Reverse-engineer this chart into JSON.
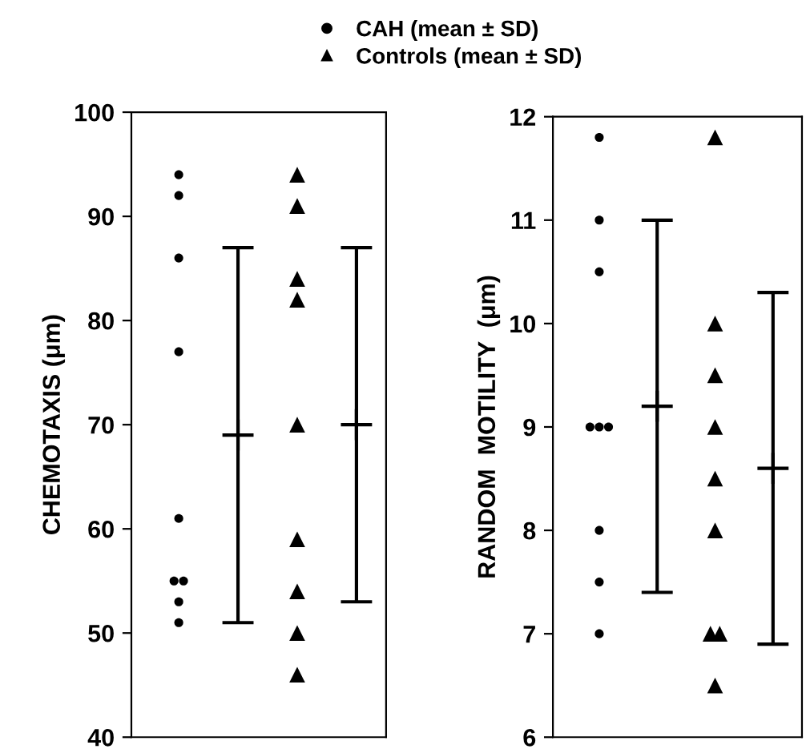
{
  "chart_data": [
    {
      "type": "scatter",
      "ylabel": "CHEMOTAXIS (μm)",
      "categories": [
        null,
        null,
        null,
        null
      ],
      "ylim": [
        40,
        100
      ],
      "yticks": [
        40,
        50,
        60,
        70,
        80,
        90,
        100
      ],
      "tick_labels": "y",
      "legend": "top",
      "series": [
        {
          "name": "CAH (mean ± SD)",
          "color": "#000000",
          "marker": "circle",
          "values": [
            94,
            null,
            null,
            null
          ]
        },
        {
          "color": "#000000",
          "marker": "circle",
          "values": [
            92,
            null,
            null,
            null
          ]
        },
        {
          "color": "#000000",
          "marker": "circle",
          "values": [
            86,
            null,
            null,
            null
          ]
        },
        {
          "color": "#000000",
          "marker": "circle",
          "values": [
            77,
            null,
            null,
            null
          ]
        },
        {
          "color": "#000000",
          "marker": "circle",
          "values": [
            61,
            null,
            null,
            null
          ]
        },
        {
          "color": "#000000",
          "marker": "circle",
          "values": [
            55,
            null,
            null,
            null
          ]
        },
        {
          "color": "#000000",
          "marker": "circle",
          "values": [
            55,
            null,
            null,
            null
          ]
        },
        {
          "color": "#000000",
          "marker": "circle",
          "values": [
            53,
            null,
            null,
            null
          ]
        },
        {
          "color": "#000000",
          "marker": "circle",
          "values": [
            51,
            null,
            null,
            null
          ]
        },
        {
          "name": "Controls (mean ± SD)",
          "color": "#000000",
          "marker": "triangle",
          "values": [
            null,
            null,
            94,
            null
          ]
        },
        {
          "color": "#000000",
          "marker": "triangle",
          "values": [
            null,
            null,
            91,
            null
          ]
        },
        {
          "color": "#000000",
          "marker": "triangle",
          "values": [
            null,
            null,
            84,
            null
          ]
        },
        {
          "color": "#000000",
          "marker": "triangle",
          "values": [
            null,
            null,
            82,
            null
          ]
        },
        {
          "color": "#000000",
          "marker": "triangle",
          "values": [
            null,
            null,
            70,
            null
          ]
        },
        {
          "color": "#000000",
          "marker": "triangle",
          "values": [
            null,
            null,
            59,
            null
          ]
        },
        {
          "color": "#000000",
          "marker": "triangle",
          "values": [
            null,
            null,
            54,
            null
          ]
        },
        {
          "color": "#000000",
          "marker": "triangle",
          "values": [
            null,
            null,
            50,
            null
          ]
        },
        {
          "color": "#000000",
          "marker": "triangle",
          "values": [
            null,
            null,
            46,
            null
          ]
        },
        {
          "color": "#000000",
          "marker": "cross",
          "values": [
            null,
            69,
            null,
            70
          ],
          "errors": [
            null,
            18,
            null,
            17
          ]
        }
      ]
    },
    {
      "type": "scatter",
      "ylabel": "RANDOM  MOTILITY  (μm)",
      "categories": [
        null,
        null,
        null,
        null
      ],
      "ylim": [
        6,
        12
      ],
      "yticks": [
        6,
        7,
        8,
        9,
        10,
        11,
        12
      ],
      "tick_labels": "y",
      "series": [
        {
          "color": "#000000",
          "marker": "circle",
          "values": [
            11.8,
            null,
            null,
            null
          ]
        },
        {
          "color": "#000000",
          "marker": "circle",
          "values": [
            11,
            null,
            null,
            null
          ]
        },
        {
          "color": "#000000",
          "marker": "circle",
          "values": [
            10.5,
            null,
            null,
            null
          ]
        },
        {
          "color": "#000000",
          "marker": "circle",
          "values": [
            9,
            null,
            null,
            null
          ]
        },
        {
          "color": "#000000",
          "marker": "circle",
          "values": [
            9,
            null,
            null,
            null
          ]
        },
        {
          "color": "#000000",
          "marker": "circle",
          "values": [
            9,
            null,
            null,
            null
          ]
        },
        {
          "color": "#000000",
          "marker": "circle",
          "values": [
            8,
            null,
            null,
            null
          ]
        },
        {
          "color": "#000000",
          "marker": "circle",
          "values": [
            7.5,
            null,
            null,
            null
          ]
        },
        {
          "color": "#000000",
          "marker": "circle",
          "values": [
            7,
            null,
            null,
            null
          ]
        },
        {
          "color": "#000000",
          "marker": "triangle",
          "values": [
            null,
            null,
            11.8,
            null
          ]
        },
        {
          "color": "#000000",
          "marker": "triangle",
          "values": [
            null,
            null,
            10,
            null
          ]
        },
        {
          "color": "#000000",
          "marker": "triangle",
          "values": [
            null,
            null,
            9.5,
            null
          ]
        },
        {
          "color": "#000000",
          "marker": "triangle",
          "values": [
            null,
            null,
            9,
            null
          ]
        },
        {
          "color": "#000000",
          "marker": "triangle",
          "values": [
            null,
            null,
            8.5,
            null
          ]
        },
        {
          "color": "#000000",
          "marker": "triangle",
          "values": [
            null,
            null,
            8,
            null
          ]
        },
        {
          "color": "#000000",
          "marker": "triangle",
          "values": [
            null,
            null,
            7,
            null
          ]
        },
        {
          "color": "#000000",
          "marker": "triangle",
          "values": [
            null,
            null,
            7,
            null
          ]
        },
        {
          "color": "#000000",
          "marker": "triangle",
          "values": [
            null,
            null,
            6.5,
            null
          ]
        },
        {
          "color": "#000000",
          "marker": "cross",
          "values": [
            null,
            9.2,
            null,
            8.6
          ],
          "errors": [
            null,
            1.8,
            null,
            1.7
          ]
        }
      ]
    }
  ]
}
